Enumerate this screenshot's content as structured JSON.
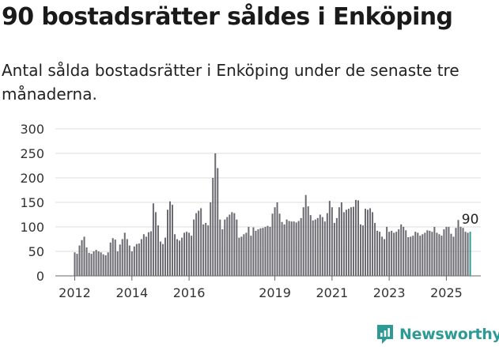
{
  "header": {
    "title": "90 bostadsrätter såldes i Enköping",
    "subtitle": "Antal sålda bostadsrätter i Enköping under de senaste tre månaderna."
  },
  "brand": {
    "name": "Newsworthy",
    "color": "#2e9a96"
  },
  "chart_data": {
    "type": "bar",
    "title": "",
    "xlabel": "",
    "ylabel": "",
    "ylim": [
      0,
      300
    ],
    "yticks": [
      0,
      50,
      100,
      150,
      200,
      250,
      300
    ],
    "xticks": [
      "2012",
      "2014",
      "2016",
      "2019",
      "2021",
      "2023",
      "2025"
    ],
    "grid": true,
    "bar_color": "#6b6a70",
    "highlight_color": "#2e9a96",
    "last_value_label": "90",
    "period": "monthly, rolling three-month totals",
    "start": "2012-01",
    "values": [
      48,
      45,
      62,
      73,
      80,
      58,
      47,
      45,
      50,
      53,
      50,
      48,
      44,
      42,
      48,
      68,
      77,
      74,
      50,
      64,
      75,
      88,
      75,
      62,
      50,
      60,
      65,
      66,
      75,
      85,
      80,
      89,
      91,
      148,
      130,
      103,
      70,
      65,
      78,
      135,
      152,
      145,
      85,
      75,
      72,
      78,
      88,
      90,
      88,
      82,
      115,
      128,
      133,
      138,
      105,
      108,
      103,
      150,
      200,
      250,
      220,
      115,
      95,
      115,
      120,
      125,
      130,
      128,
      115,
      78,
      80,
      85,
      88,
      100,
      82,
      99,
      92,
      95,
      97,
      98,
      100,
      102,
      100,
      127,
      140,
      150,
      127,
      110,
      105,
      115,
      112,
      111,
      111,
      109,
      112,
      118,
      140,
      165,
      142,
      124,
      113,
      115,
      118,
      125,
      120,
      111,
      128,
      153,
      140,
      108,
      118,
      140,
      150,
      130,
      135,
      137,
      140,
      141,
      155,
      154,
      105,
      103,
      137,
      135,
      138,
      130,
      108,
      92,
      90,
      80,
      75,
      100,
      90,
      92,
      88,
      90,
      95,
      105,
      100,
      93,
      79,
      80,
      82,
      90,
      88,
      82,
      85,
      88,
      93,
      92,
      90,
      100,
      88,
      85,
      82,
      95,
      100,
      100,
      86,
      80,
      98,
      114,
      100,
      98,
      90,
      88,
      90
    ]
  }
}
